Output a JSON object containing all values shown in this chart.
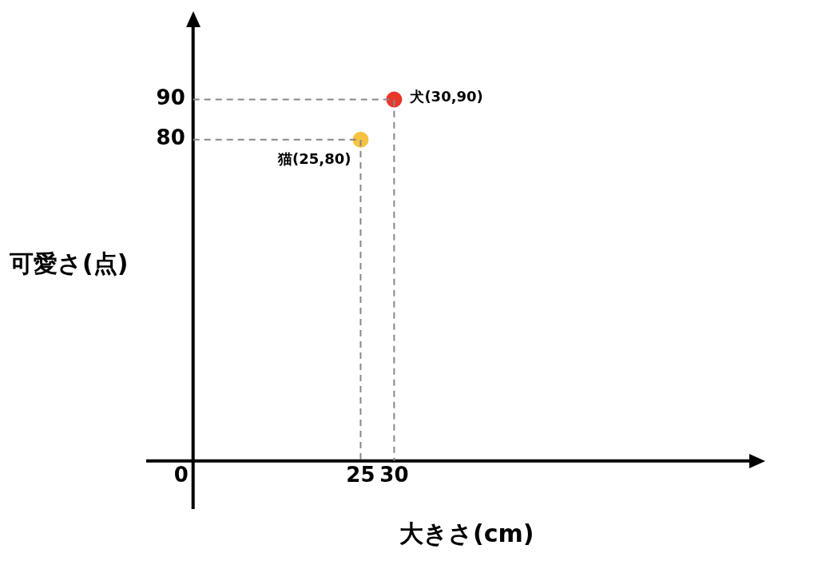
{
  "chart_data": {
    "type": "scatter",
    "xlabel": "大きさ(cm)",
    "ylabel": "可愛さ(点)",
    "xlim": [
      -7,
      83
    ],
    "ylim": [
      -12,
      108
    ],
    "xticks": [
      0,
      25,
      30
    ],
    "yticks": [
      80,
      90
    ],
    "grid": false,
    "legend": false,
    "marker": "circle",
    "series": [
      {
        "type": "line",
        "color": "#888888",
        "line_style": "dashed",
        "marker": "none",
        "x": [
          0,
          30,
          30
        ],
        "values": [
          90,
          90,
          0
        ]
      },
      {
        "type": "line",
        "color": "#888888",
        "line_style": "dashed",
        "marker": "none",
        "x": [
          0,
          25,
          25
        ],
        "values": [
          80,
          80,
          0
        ]
      },
      {
        "type": "scatter",
        "color": "#e8382b",
        "x": [
          30
        ],
        "values": [
          90
        ]
      },
      {
        "type": "scatter",
        "color": "#f5c242",
        "x": [
          25
        ],
        "values": [
          80
        ]
      }
    ],
    "annotations": [
      {
        "text": "犬(30,90)",
        "x": 30,
        "y": 90
      },
      {
        "text": "猫(25,80)",
        "x": 25,
        "y": 80
      }
    ]
  }
}
